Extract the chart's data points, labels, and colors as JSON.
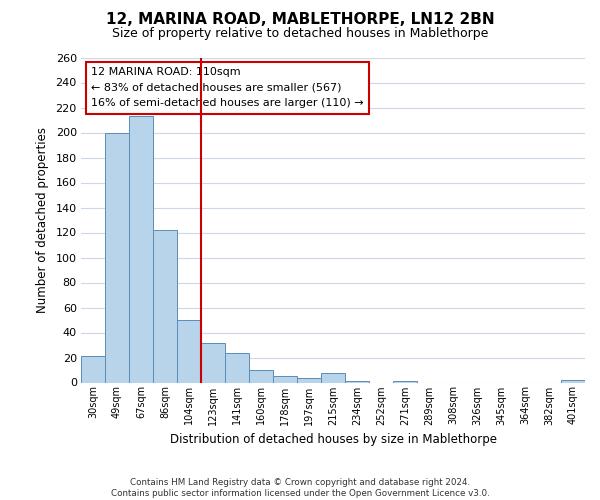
{
  "title": "12, MARINA ROAD, MABLETHORPE, LN12 2BN",
  "subtitle": "Size of property relative to detached houses in Mablethorpe",
  "bar_values": [
    21,
    200,
    213,
    122,
    50,
    32,
    24,
    10,
    5,
    4,
    8,
    1,
    0,
    1,
    0,
    0,
    0,
    0,
    0,
    0,
    2
  ],
  "x_labels": [
    "30sqm",
    "49sqm",
    "67sqm",
    "86sqm",
    "104sqm",
    "123sqm",
    "141sqm",
    "160sqm",
    "178sqm",
    "197sqm",
    "215sqm",
    "234sqm",
    "252sqm",
    "271sqm",
    "289sqm",
    "308sqm",
    "326sqm",
    "345sqm",
    "364sqm",
    "382sqm",
    "401sqm"
  ],
  "bar_color": "#b8d4ea",
  "bar_edge_color": "#5b8db8",
  "ylabel": "Number of detached properties",
  "xlabel": "Distribution of detached houses by size in Mablethorpe",
  "ylim": [
    0,
    260
  ],
  "yticks": [
    0,
    20,
    40,
    60,
    80,
    100,
    120,
    140,
    160,
    180,
    200,
    220,
    240,
    260
  ],
  "property_line_x": 4.5,
  "property_line_color": "#cc0000",
  "annotation_title": "12 MARINA ROAD: 110sqm",
  "annotation_line1": "← 83% of detached houses are smaller (567)",
  "annotation_line2": "16% of semi-detached houses are larger (110) →",
  "annotation_box_color": "#ffffff",
  "annotation_box_edge": "#cc0000",
  "footer1": "Contains HM Land Registry data © Crown copyright and database right 2024.",
  "footer2": "Contains public sector information licensed under the Open Government Licence v3.0.",
  "background_color": "#ffffff",
  "grid_color": "#ccd8e8"
}
